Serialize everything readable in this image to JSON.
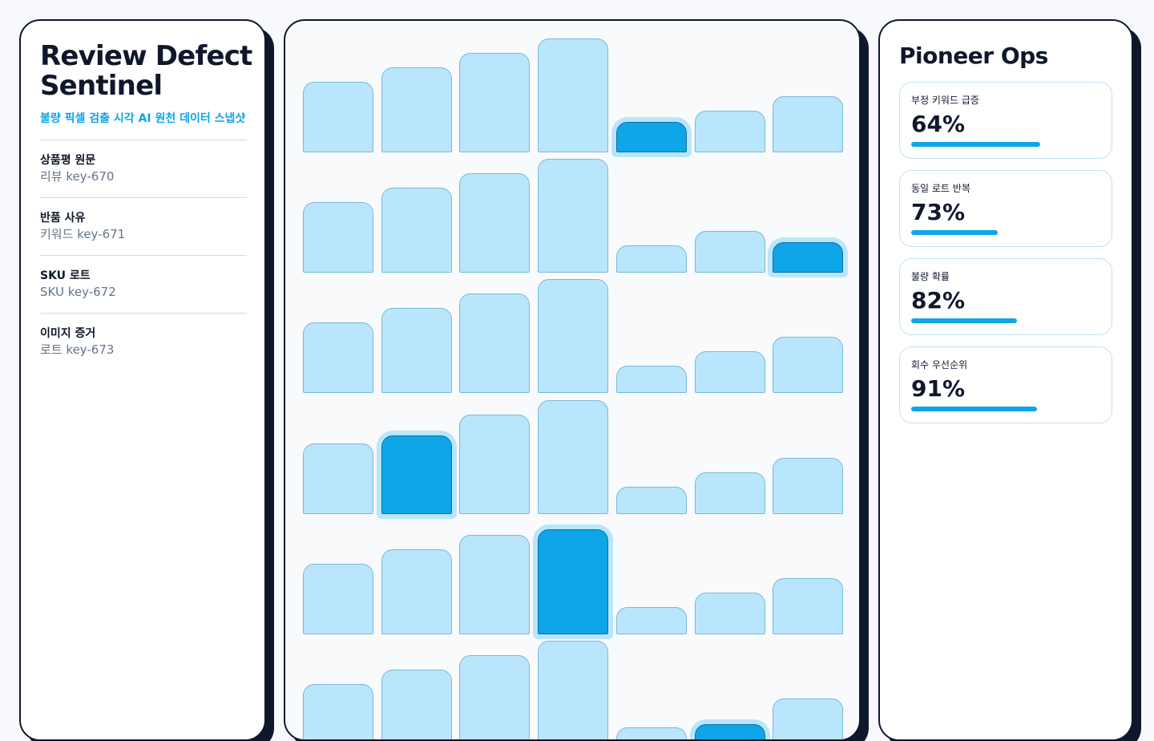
{
  "left": {
    "title": "Review Defect Sentinel",
    "subtitle": "불량 픽셀 검출 시각 AI 원천 데이터 스냅샷",
    "fields": [
      {
        "label": "상품평 원문",
        "value": "리뷰 key-670"
      },
      {
        "label": "반품 사유",
        "value": "키워드 key-671"
      },
      {
        "label": "SKU 로트",
        "value": "SKU key-672"
      },
      {
        "label": "이미지 증거",
        "value": "로트 key-673"
      }
    ]
  },
  "grid": {
    "column_levels": [
      0.6,
      0.72,
      0.84,
      0.96,
      0.24,
      0.36,
      0.48
    ],
    "highlighted": [
      {
        "row": 0,
        "col": 4
      },
      {
        "row": 1,
        "col": 6
      },
      {
        "row": 3,
        "col": 1
      },
      {
        "row": 4,
        "col": 3
      },
      {
        "row": 5,
        "col": 5
      }
    ],
    "rows": 6,
    "colors": {
      "bar": "#bae6fd",
      "highlight": "#0ea5e9"
    }
  },
  "right": {
    "title": "Pioneer Ops",
    "metrics": [
      {
        "label": "부정 키워드 급증",
        "value": "64%",
        "fill": 0.84
      },
      {
        "label": "동일 로트 반복",
        "value": "73%",
        "fill": 0.56
      },
      {
        "label": "불량 확률",
        "value": "82%",
        "fill": 0.69
      },
      {
        "label": "회수 우선순위",
        "value": "91%",
        "fill": 0.82
      }
    ]
  },
  "colors": {
    "accent": "#0ea5e9",
    "ink": "#0f172a"
  }
}
